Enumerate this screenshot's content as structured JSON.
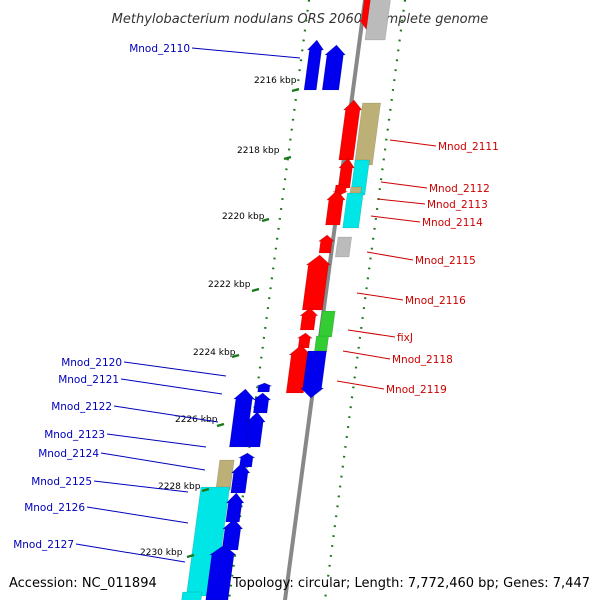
{
  "title": "Methylobacterium nodulans ORS 2060, complete genome",
  "footer": {
    "accession": "Accession: NC_011894",
    "summary": "Topology: circular; Length: 7,772,460 bp; Genes: 7,447"
  },
  "colors": {
    "left_label": "#0000bb",
    "right_label": "#cc0000",
    "tick": "#1a7a1a",
    "backbone": "#888888",
    "red": "#ff0000",
    "blue": "#0000ee",
    "cyan": "#00e5e5",
    "khaki": "#bdb076",
    "green": "#33cc33",
    "gray": "#bbbbbb"
  },
  "scale_labels": [
    "2216 kbp",
    "2218 kbp",
    "2220 kbp",
    "2222 kbp",
    "2224 kbp",
    "2226 kbp",
    "2228 kbp",
    "2230 kbp"
  ],
  "left_labels": [
    "Mnod_2110",
    "Mnod_2120",
    "Mnod_2121",
    "Mnod_2122",
    "Mnod_2123",
    "Mnod_2124",
    "Mnod_2125",
    "Mnod_2126",
    "Mnod_2127"
  ],
  "right_labels": [
    "Mnod_2111",
    "Mnod_2112",
    "Mnod_2113",
    "Mnod_2114",
    "Mnod_2115",
    "Mnod_2116",
    "fixJ",
    "Mnod_2118",
    "Mnod_2119"
  ],
  "genes": [
    {
      "color": "red",
      "dir": "down"
    },
    {
      "color": "gray",
      "dir": "none"
    },
    {
      "color": "blue",
      "dir": "up"
    },
    {
      "color": "blue",
      "dir": "up"
    },
    {
      "color": "red",
      "dir": "up"
    },
    {
      "color": "khaki",
      "dir": "none"
    },
    {
      "color": "red",
      "dir": "up"
    },
    {
      "color": "cyan",
      "dir": "none"
    },
    {
      "color": "red",
      "dir": "down"
    },
    {
      "color": "khaki",
      "dir": "none"
    },
    {
      "color": "red",
      "dir": "up"
    },
    {
      "color": "cyan",
      "dir": "none"
    },
    {
      "color": "red",
      "dir": "up"
    },
    {
      "color": "gray",
      "dir": "none"
    },
    {
      "color": "red",
      "dir": "up"
    },
    {
      "color": "red",
      "dir": "up"
    },
    {
      "color": "green",
      "dir": "none"
    },
    {
      "color": "red",
      "dir": "up"
    },
    {
      "color": "green",
      "dir": "none"
    },
    {
      "color": "red",
      "dir": "up"
    },
    {
      "color": "blue",
      "dir": "down"
    },
    {
      "color": "blue",
      "dir": "up"
    },
    {
      "color": "blue",
      "dir": "up"
    },
    {
      "color": "blue",
      "dir": "up"
    },
    {
      "color": "blue",
      "dir": "up"
    },
    {
      "color": "blue",
      "dir": "up"
    },
    {
      "color": "khaki",
      "dir": "none"
    },
    {
      "color": "blue",
      "dir": "up"
    },
    {
      "color": "cyan",
      "dir": "none"
    },
    {
      "color": "blue",
      "dir": "up"
    },
    {
      "color": "blue",
      "dir": "up"
    },
    {
      "color": "blue",
      "dir": "up"
    },
    {
      "color": "cyan",
      "dir": "none"
    }
  ]
}
